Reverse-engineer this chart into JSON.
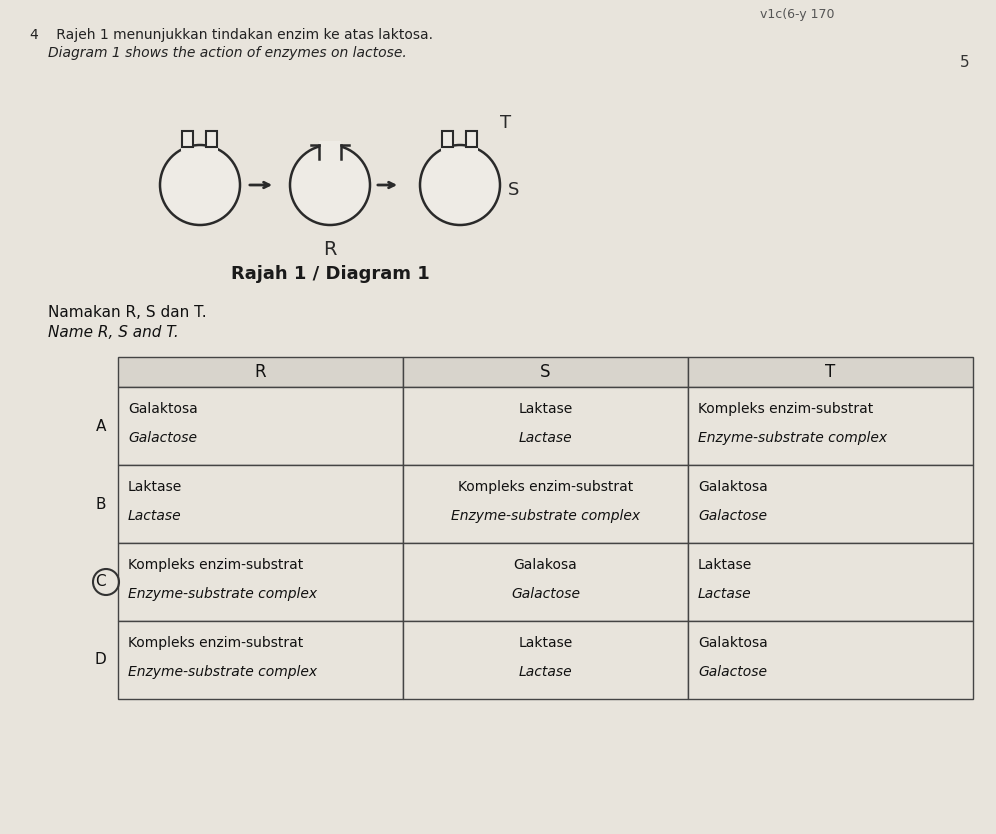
{
  "bg_color": "#d8d4cc",
  "page_bg": "#e8e4dc",
  "header_text_1": "4    Rajeh 1 menunjukkan tindakan enzim ke atas laktosa.",
  "header_text_2": "Diagram 1 shows the action of enzymes on lactose.",
  "diagram_caption": "Rajah 1 / Diagram 1",
  "instruction_1": "Namakan R, S dan T.",
  "instruction_2": "Name R, S and T.",
  "col_headers": [
    "R",
    "S",
    "T"
  ],
  "row_labels": [
    "A",
    "B",
    "C",
    "D"
  ],
  "table_data": [
    [
      [
        "Galaktosa",
        "Galactose"
      ],
      [
        "Laktase",
        "Lactase"
      ],
      [
        "Kompleks enzim-substrat",
        "Enzyme-substrate complex"
      ]
    ],
    [
      [
        "Laktase",
        "Lactase"
      ],
      [
        "Kompleks enzim-substrat",
        "Enzyme-substrate complex"
      ],
      [
        "Galaktosa",
        "Galactose"
      ]
    ],
    [
      [
        "Kompleks enzim-substrat",
        "Enzyme-substrate complex"
      ],
      [
        "Galakosa",
        "Galactose"
      ],
      [
        "Laktase",
        "Lactase"
      ]
    ],
    [
      [
        "Kompleks enzim-substrat",
        "Enzyme-substrate complex"
      ],
      [
        "Laktase",
        "Lactase"
      ],
      [
        "Galaktosa",
        "Galactose"
      ]
    ]
  ],
  "circled_row": "C",
  "top_right_text": "v1c(6-y 170",
  "right_margin_text": "5"
}
